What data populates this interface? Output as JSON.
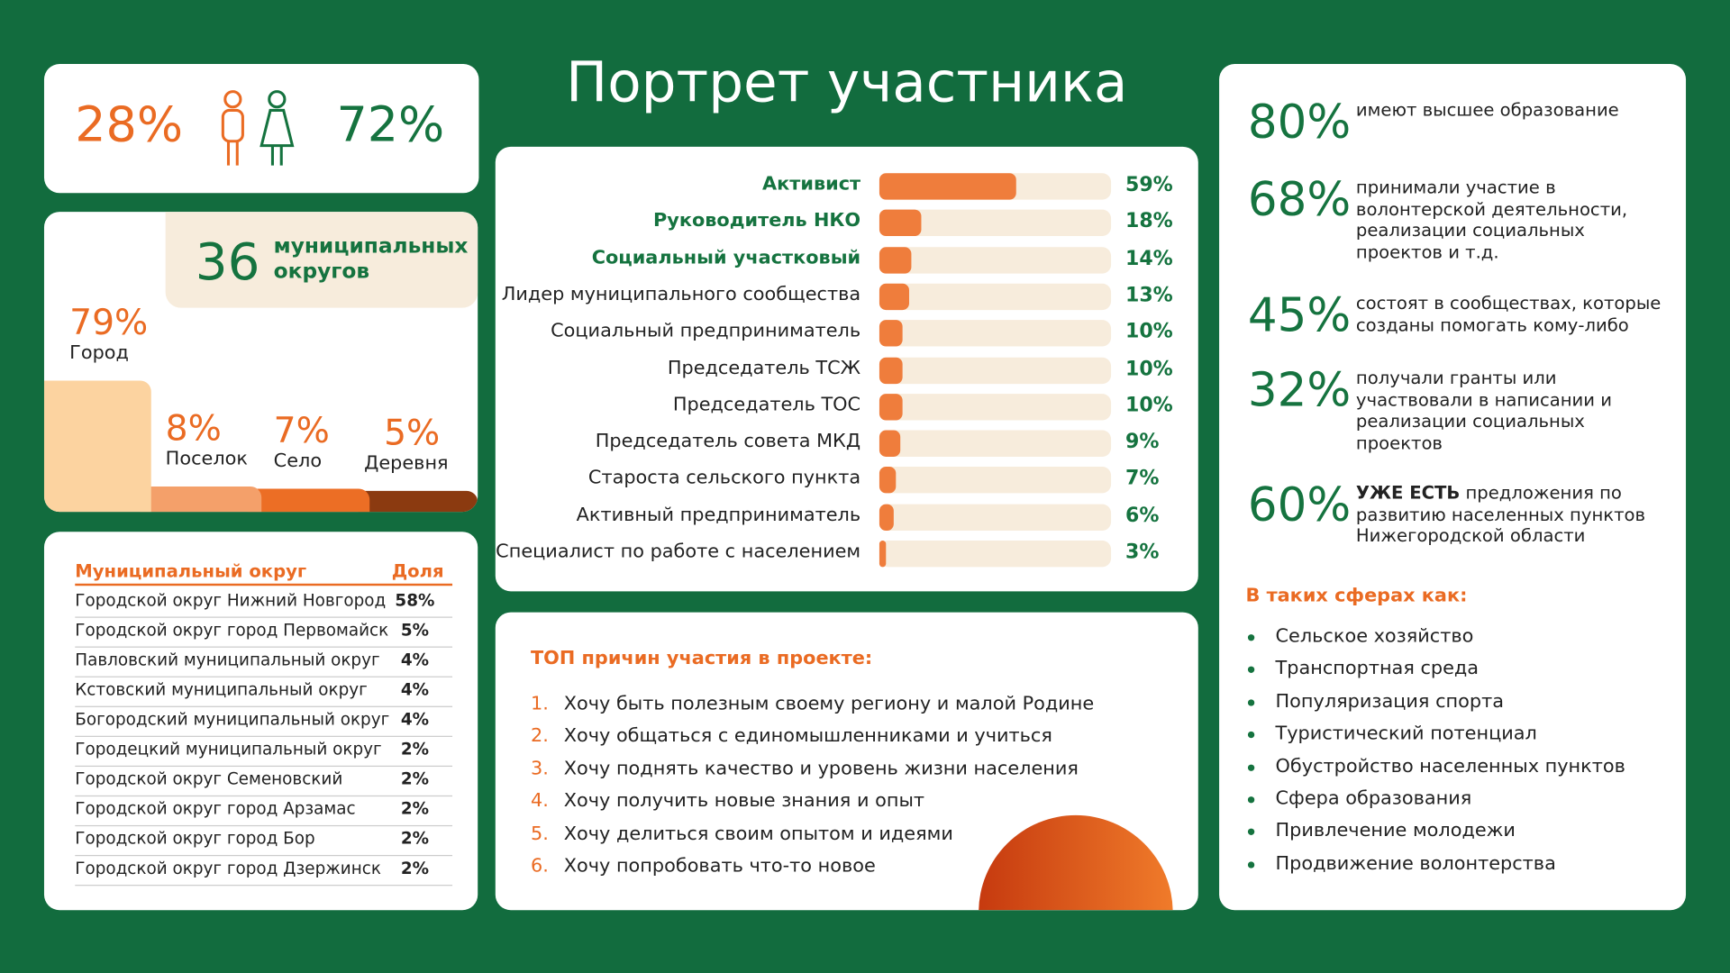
{
  "title": "Портрет участника",
  "gender": {
    "male": "28%",
    "female": "72%"
  },
  "settlements": {
    "count": "36",
    "count_text": "муниципальных округов",
    "items": [
      {
        "name": "Город",
        "value": 79,
        "label": "79%"
      },
      {
        "name": "Поселок",
        "value": 8,
        "label": "8%"
      },
      {
        "name": "Село",
        "value": 7,
        "label": "7%"
      },
      {
        "name": "Деревня",
        "value": 5,
        "label": "5%"
      }
    ]
  },
  "table": {
    "header": [
      "Муниципальный округ",
      "Доля"
    ],
    "rows": [
      [
        "Городской округ Нижний Новгород",
        "58%"
      ],
      [
        "Городской округ город Первомайск",
        "5%"
      ],
      [
        "Павловский муниципальный округ",
        "4%"
      ],
      [
        "Кстовский муниципальный округ",
        "4%"
      ],
      [
        "Богородский муниципальный округ",
        "4%"
      ],
      [
        "Городецкий муниципальный округ",
        "2%"
      ],
      [
        "Городской округ Семеновский",
        "2%"
      ],
      [
        "Городской округ город Арзамас",
        "2%"
      ],
      [
        "Городской округ город Бор",
        "2%"
      ],
      [
        "Городской округ город Дзержинск",
        "2%"
      ]
    ]
  },
  "chart_data": {
    "type": "bar",
    "categories": [
      "Активист",
      "Руководитель НКО",
      "Социальный участковый",
      "Лидер муниципального сообщества",
      "Социальный предприниматель",
      "Председатель ТСЖ",
      "Председатель ТОС",
      "Председатель совета МКД",
      "Староста сельского пункта",
      "Активный предприниматель",
      "Специалист по работе с населением"
    ],
    "values": [
      59,
      18,
      14,
      13,
      10,
      10,
      10,
      9,
      7,
      6,
      3
    ],
    "value_labels": [
      "59%",
      "18%",
      "14%",
      "13%",
      "10%",
      "10%",
      "10%",
      "9%",
      "7%",
      "6%",
      "3%"
    ],
    "xlim": [
      0,
      100
    ],
    "color": "#ef7d3c"
  },
  "reasons": {
    "title": "ТОП причин участия в проекте:",
    "items": [
      {
        "num": "1.",
        "text": "Хочу быть полезным своему региону и малой Родине"
      },
      {
        "num": "2.",
        "text": "Хочу общаться с единомышленниками и учиться"
      },
      {
        "num": "3.",
        "text": "Хочу поднять качество и уровень жизни населения"
      },
      {
        "num": "4.",
        "text": "Хочу получить новые знания и опыт"
      },
      {
        "num": "5.",
        "text": "Хочу делиться своим опытом и идеями"
      },
      {
        "num": "6.",
        "text": "Хочу попробовать что-то новое"
      }
    ]
  },
  "stats": [
    {
      "value": "80%",
      "text": "имеют высшее образование"
    },
    {
      "value": "68%",
      "text": "принимали участие в волонтерской деятельности, реализации социальных проектов и т.д."
    },
    {
      "value": "45%",
      "text": "состоят в сообществах, которые созданы помогать кому-либо"
    },
    {
      "value": "32%",
      "text": "получали гранты или участвовали в написании и реализации социальных проектов"
    },
    {
      "value": "60%",
      "bold": "УЖЕ ЕСТЬ",
      "text": "предложения по развитию населенных пунктов Нижегородской области"
    }
  ],
  "spheres": {
    "title": "В таких сферах как:",
    "items": [
      "Сельское хозяйство",
      "Транспортная среда",
      "Популяризация спорта",
      "Туристический потенциал",
      "Обустройство населенных пунктов",
      "Сфера образования",
      "Привлечение молодежи",
      "Продвижение волонтерства"
    ]
  }
}
